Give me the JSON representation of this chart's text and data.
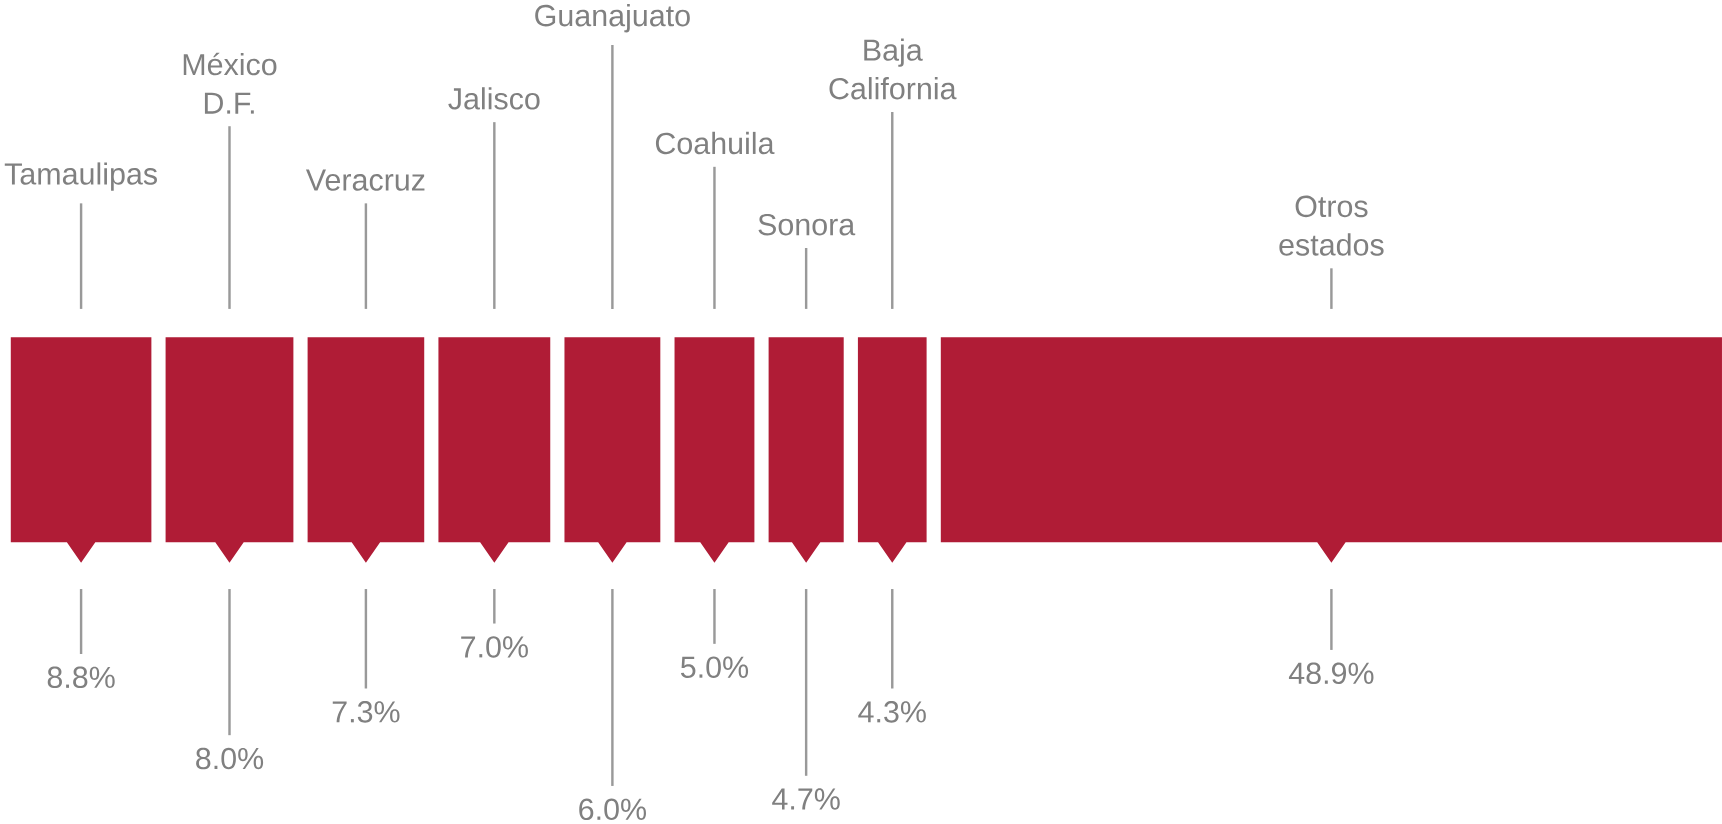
{
  "chart_data": {
    "type": "other",
    "color": "#b01c36",
    "categories": [
      "Tamaulipas",
      "México D.F.",
      "Veracruz",
      "Jalisco",
      "Guanajuato",
      "Coahuila",
      "Sonora",
      "Baja California",
      "Otros estados"
    ],
    "values": [
      8.8,
      8.0,
      7.3,
      7.0,
      6.0,
      5.0,
      4.7,
      4.3,
      48.9
    ],
    "value_labels": [
      "8.8%",
      "8.0%",
      "7.3%",
      "7.0%",
      "6.0%",
      "5.0%",
      "4.7%",
      "4.3%",
      "48.9%"
    ]
  }
}
